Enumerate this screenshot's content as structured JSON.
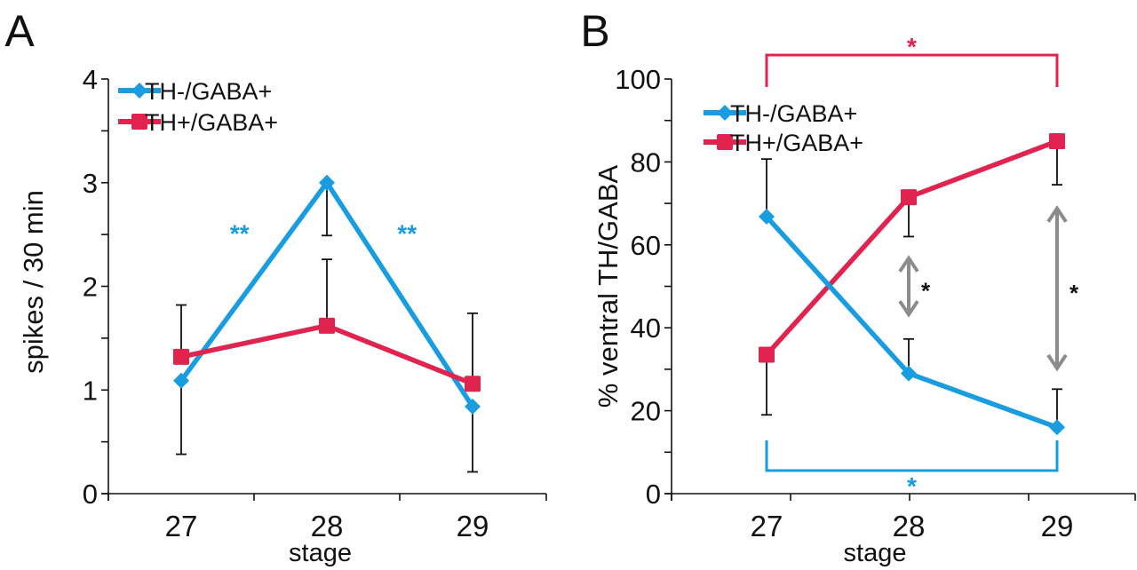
{
  "colors": {
    "series_blue": "#1a9de0",
    "series_red": "#e0234f",
    "arrow_gray": "#8c8c8c",
    "axis": "#111111"
  },
  "chart_data": [
    {
      "panel_label": "A",
      "type": "line",
      "title": "",
      "xlabel": "stage",
      "ylabel": "spikes / 30 min",
      "categories": [
        "27",
        "28",
        "29"
      ],
      "ylim": [
        0,
        4
      ],
      "yticks": [
        "0",
        "1",
        "2",
        "3",
        "4"
      ],
      "yminor_step": 0.5,
      "grid": false,
      "legend": {
        "placement": "top-left",
        "entries": [
          "TH-/GABA+",
          "TH+/GABA+"
        ]
      },
      "series": [
        {
          "name": "TH-/GABA+",
          "marker": "diamond",
          "color": "#1a9de0",
          "values": [
            1.09,
            3.0,
            0.84
          ],
          "error": [
            {
              "dir": "down",
              "to": 0.38
            },
            {
              "dir": "down",
              "to": 2.49
            },
            {
              "dir": "down",
              "to": 0.21
            }
          ]
        },
        {
          "name": "TH+/GABA+",
          "marker": "square",
          "color": "#e0234f",
          "values": [
            1.32,
            1.62,
            1.06
          ],
          "error": [
            {
              "dir": "up",
              "to": 1.82
            },
            {
              "dir": "up",
              "to": 2.26
            },
            {
              "dir": "up",
              "to": 1.74
            }
          ]
        }
      ],
      "annotations": [
        {
          "text": "**",
          "color": "#1a9de0",
          "x": 27.4,
          "y": 2.55
        },
        {
          "text": "**",
          "color": "#1a9de0",
          "x": 28.55,
          "y": 2.55
        }
      ]
    },
    {
      "panel_label": "B",
      "type": "line",
      "title": "",
      "xlabel": "stage",
      "ylabel": "% ventral TH/GABA",
      "categories": [
        "27",
        "28",
        "29"
      ],
      "ylim": [
        0,
        100
      ],
      "yticks": [
        "0",
        "20",
        "40",
        "60",
        "80",
        "100"
      ],
      "yminor_step": 10,
      "grid": false,
      "legend": {
        "placement": "top-left",
        "entries": [
          "TH-/GABA+",
          "TH+/GABA+"
        ]
      },
      "series": [
        {
          "name": "TH-/GABA+",
          "marker": "diamond",
          "color": "#1a9de0",
          "values": [
            66.8,
            29.0,
            16.0
          ],
          "error": [
            {
              "dir": "up",
              "to": 80.7
            },
            {
              "dir": "up",
              "to": 37.3
            },
            {
              "dir": "up",
              "to": 25.2
            }
          ]
        },
        {
          "name": "TH+/GABA+",
          "marker": "square",
          "color": "#e0234f",
          "values": [
            33.5,
            71.5,
            85.0
          ],
          "error": [
            {
              "dir": "down",
              "to": 19.0
            },
            {
              "dir": "down",
              "to": 62.0
            },
            {
              "dir": "down",
              "to": 74.5
            }
          ]
        }
      ],
      "annotations": [
        {
          "type": "bracket",
          "series": "TH+/GABA+",
          "from": "27",
          "to": "29",
          "position": "top",
          "text": "*",
          "color": "#e0234f"
        },
        {
          "type": "bracket",
          "series": "TH-/GABA+",
          "from": "27",
          "to": "29",
          "position": "bottom",
          "text": "*",
          "color": "#1a9de0"
        },
        {
          "type": "double-arrow",
          "at": "28",
          "from": 43,
          "to": 57,
          "text": "*",
          "color": "#8c8c8c"
        },
        {
          "type": "double-arrow",
          "at": "29",
          "from": 30,
          "to": 69,
          "text": "*",
          "color": "#8c8c8c"
        }
      ]
    }
  ]
}
